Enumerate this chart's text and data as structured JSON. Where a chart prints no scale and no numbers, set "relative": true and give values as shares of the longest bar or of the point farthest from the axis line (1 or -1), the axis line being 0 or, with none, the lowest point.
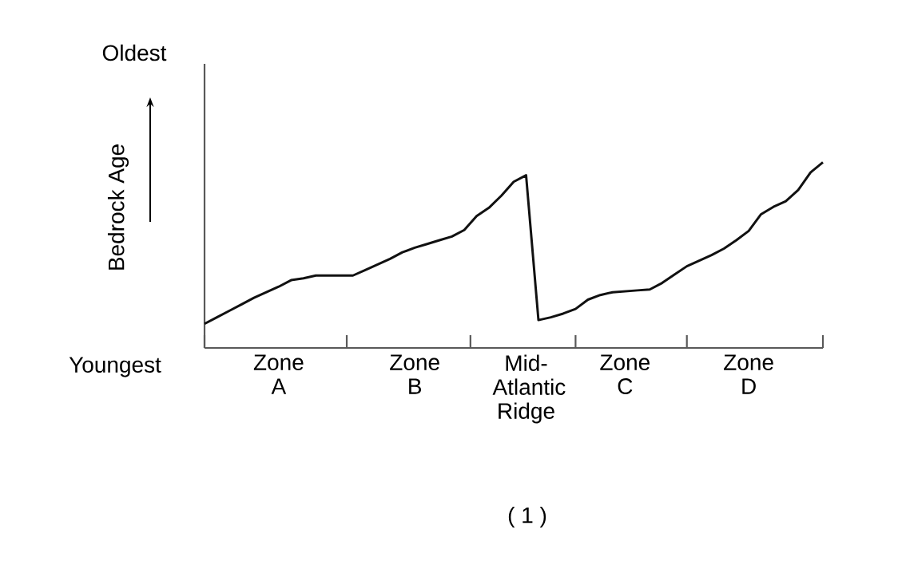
{
  "chart_data": {
    "type": "line",
    "relative": true,
    "ylabel": "Bedrock Age",
    "annotations": [
      "Oldest",
      "Youngest",
      "( 1 )"
    ],
    "categories": [
      null,
      null,
      null,
      null,
      null,
      null,
      "Zone A",
      null,
      null,
      null,
      null,
      null,
      null,
      null,
      null,
      null,
      null,
      "Zone B",
      null,
      null,
      null,
      null,
      null,
      null,
      null,
      null,
      "Mid-Atlantic Ridge",
      null,
      null,
      null,
      null,
      null,
      null,
      null,
      "Zone C",
      null,
      null,
      null,
      null,
      null,
      null,
      null,
      null,
      null,
      "Zone D",
      null,
      null,
      null,
      null,
      null,
      null
    ],
    "series": [
      {
        "color": "#111111",
        "values": [
          0.13,
          0.165,
          0.2,
          0.235,
          0.27,
          0.3,
          0.33,
          0.365,
          0.375,
          0.39,
          0.39,
          0.39,
          0.39,
          0.42,
          0.45,
          0.48,
          0.515,
          0.54,
          0.56,
          0.58,
          0.6,
          0.635,
          0.71,
          0.755,
          0.82,
          0.895,
          0.93,
          0.15,
          0.165,
          0.185,
          0.21,
          0.26,
          0.285,
          0.3,
          0.305,
          0.31,
          0.315,
          0.35,
          0.395,
          0.44,
          0.47,
          0.5,
          0.535,
          0.58,
          0.63,
          0.72,
          0.76,
          0.79,
          0.85,
          0.945,
          1
        ]
      }
    ],
    "marker": "none",
    "line_style": "solid"
  }
}
